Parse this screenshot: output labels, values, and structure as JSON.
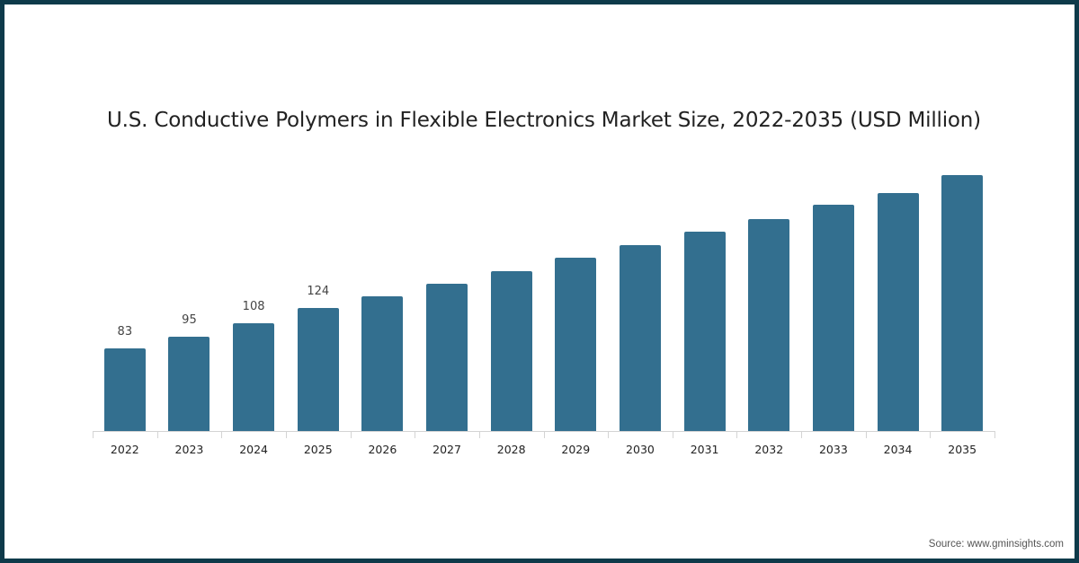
{
  "chart_data": {
    "type": "bar",
    "title": "U.S. Conductive Polymers in Flexible Electronics Market Size, 2022-2035 (USD Million)",
    "xlabel": "",
    "ylabel": "USD Million",
    "categories": [
      "2022",
      "2023",
      "2024",
      "2025",
      "2026",
      "2027",
      "2028",
      "2029",
      "2030",
      "2031",
      "2032",
      "2033",
      "2034",
      "2035"
    ],
    "values": [
      83,
      95,
      108,
      124,
      135,
      148,
      161,
      174,
      187,
      200,
      213,
      227,
      239,
      257
    ],
    "data_labels_shown": [
      "83",
      "95",
      "108",
      "124",
      "",
      "",
      "",
      "",
      "",
      "",
      "",
      "",
      "",
      ""
    ],
    "ylim": [
      0,
      290
    ],
    "grid": false,
    "legend": null,
    "bar_color": "#336f8f"
  },
  "source": "Source: www.gminsights.com",
  "colors": {
    "frame": "#0e3a4a",
    "bar": "#336f8f",
    "axis": "#d4d4d4"
  }
}
